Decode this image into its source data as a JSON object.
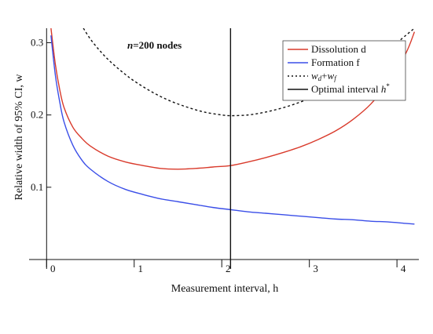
{
  "chart_data": {
    "type": "line",
    "title": "",
    "annotation": {
      "n_label": "n",
      "rest_label": "=200 nodes"
    },
    "xlabel": "Measurement interval, h",
    "ylabel": "Relative width of 95% CI, w",
    "xlim": [
      -0.2,
      4.25
    ],
    "ylim": [
      0.0,
      0.32
    ],
    "x_ticks": [
      {
        "value": 0,
        "label": "0"
      },
      {
        "value": 1,
        "label": "1"
      },
      {
        "value": 2,
        "label": "2"
      },
      {
        "value": 3,
        "label": "3"
      },
      {
        "value": 4,
        "label": "4"
      }
    ],
    "y_ticks": [
      {
        "value": 0.1,
        "label": "0.1"
      },
      {
        "value": 0.2,
        "label": "0.2"
      },
      {
        "value": 0.3,
        "label": "0.3"
      }
    ],
    "optimal_interval": 2.1,
    "legend_position": "top-right",
    "series": [
      {
        "name": "Dissolution d",
        "color": "#d93a2b",
        "dash": "solid",
        "x": [
          0.05,
          0.1,
          0.15,
          0.2,
          0.3,
          0.4,
          0.5,
          0.7,
          0.9,
          1.1,
          1.3,
          1.5,
          1.7,
          1.9,
          2.1,
          2.3,
          2.5,
          2.7,
          2.9,
          3.1,
          3.3,
          3.5,
          3.7,
          3.9,
          4.1,
          4.2
        ],
        "y": [
          0.32,
          0.27,
          0.235,
          0.21,
          0.183,
          0.168,
          0.157,
          0.143,
          0.135,
          0.13,
          0.126,
          0.125,
          0.126,
          0.128,
          0.13,
          0.135,
          0.141,
          0.148,
          0.156,
          0.166,
          0.178,
          0.194,
          0.215,
          0.245,
          0.285,
          0.315
        ]
      },
      {
        "name": "Formation f",
        "color": "#3a4ee8",
        "dash": "solid",
        "x": [
          0.05,
          0.1,
          0.15,
          0.2,
          0.3,
          0.4,
          0.5,
          0.7,
          0.9,
          1.1,
          1.3,
          1.5,
          1.7,
          1.9,
          2.1,
          2.3,
          2.5,
          2.7,
          2.9,
          3.1,
          3.3,
          3.5,
          3.7,
          3.9,
          4.1,
          4.2
        ],
        "y": [
          0.31,
          0.255,
          0.218,
          0.19,
          0.158,
          0.138,
          0.125,
          0.108,
          0.097,
          0.09,
          0.084,
          0.08,
          0.076,
          0.072,
          0.069,
          0.066,
          0.064,
          0.062,
          0.06,
          0.058,
          0.056,
          0.055,
          0.053,
          0.052,
          0.05,
          0.049
        ]
      },
      {
        "name": "wd+wf",
        "label_parts": {
          "w1": "w",
          "s1": "d",
          "plus": "+",
          "w2": "w",
          "s2": "f"
        },
        "color": "#111111",
        "dash": "dotted",
        "x": [
          0.42,
          0.5,
          0.6,
          0.7,
          0.8,
          0.9,
          1.0,
          1.2,
          1.4,
          1.6,
          1.8,
          2.0,
          2.1,
          2.3,
          2.5,
          2.7,
          2.9,
          3.1,
          3.3,
          3.5,
          3.7,
          3.9,
          4.1,
          4.2
        ],
        "y": [
          0.32,
          0.305,
          0.29,
          0.277,
          0.266,
          0.256,
          0.247,
          0.232,
          0.22,
          0.211,
          0.204,
          0.2,
          0.199,
          0.2,
          0.204,
          0.21,
          0.218,
          0.228,
          0.24,
          0.255,
          0.272,
          0.29,
          0.31,
          0.32
        ]
      }
    ],
    "optimal_legend": {
      "name": "Optimal interval h*",
      "text": "Optimal interval ",
      "h": "h",
      "star": "*",
      "color": "#111111"
    }
  }
}
